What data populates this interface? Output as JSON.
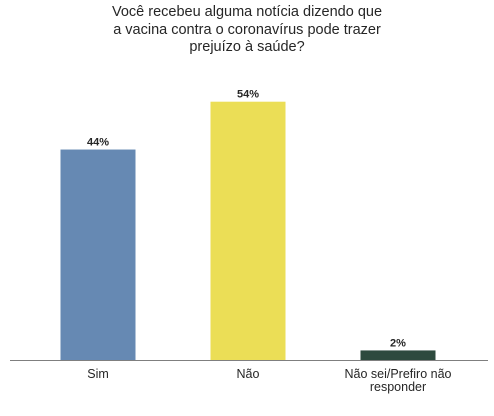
{
  "chart_data": {
    "type": "bar",
    "title_lines": [
      "Você recebeu alguma notícia dizendo que",
      "a vacina contra o coronavírus pode trazer",
      "prejuízo à saúde?"
    ],
    "categories": [
      "Sim",
      "Não",
      "Não sei/Prefiro não responder"
    ],
    "category_label_lines": [
      [
        "Sim"
      ],
      [
        "Não"
      ],
      [
        "Não sei/Prefiro não",
        "responder"
      ]
    ],
    "values": [
      44,
      54,
      2
    ],
    "value_labels": [
      "44%",
      "54%",
      "2%"
    ],
    "bar_colors": [
      "#6689b3",
      "#ebde56",
      "#2d4a3e"
    ],
    "xlabel": "",
    "ylabel": "",
    "ylim": [
      0,
      60
    ],
    "grid": false,
    "legend": "none"
  }
}
